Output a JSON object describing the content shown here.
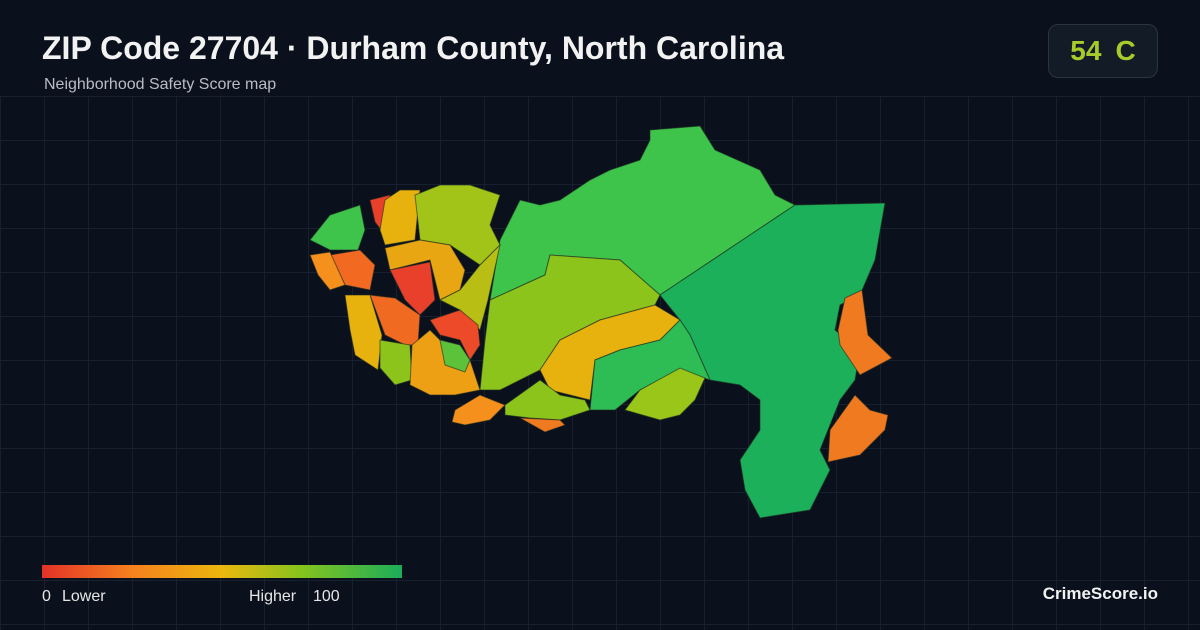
{
  "header": {
    "title": "ZIP Code 27704 · Durham County, North Carolina",
    "subtitle": "Neighborhood Safety Score map"
  },
  "score": {
    "value": 54,
    "grade": "C"
  },
  "legend": {
    "min": 0,
    "min_label": "Lower",
    "max_label": "Higher",
    "max": 100
  },
  "brand": "CrimeScore.io"
}
